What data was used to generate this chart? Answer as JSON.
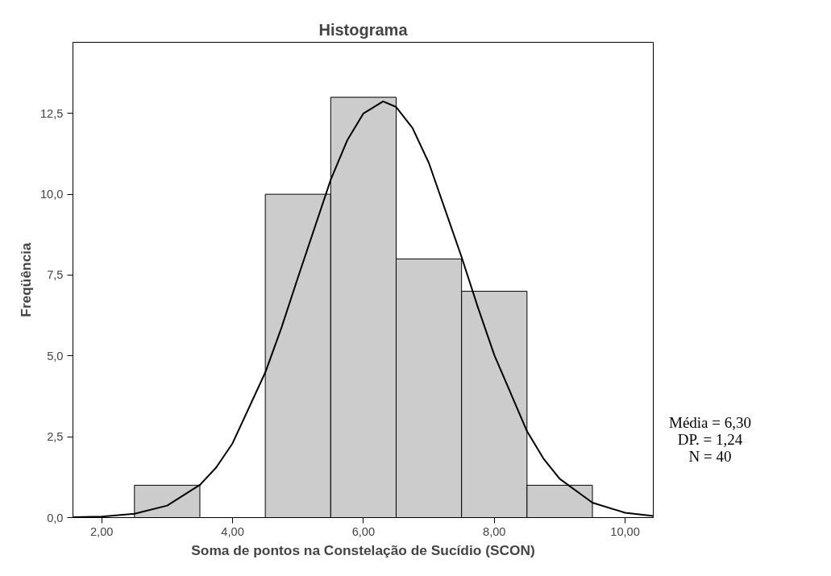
{
  "chart_data": {
    "type": "histogram",
    "title": "Histograma",
    "xlabel": "Soma de pontos na Constelação de Sucídio (SCON)",
    "ylabel": "Freqüência",
    "bins": [
      2.5,
      3.5,
      4.5,
      5.5,
      6.5,
      7.5,
      8.5,
      9.5
    ],
    "values": [
      1,
      0,
      10,
      13,
      8,
      7,
      1
    ],
    "color": "#cccccc",
    "series": [
      {
        "type": "line",
        "color": "#000000",
        "x": [
          1.56,
          2.0,
          2.5,
          3.0,
          3.5,
          3.75,
          4.0,
          4.5,
          4.75,
          5.0,
          5.5,
          5.75,
          6.0,
          6.3,
          6.5,
          6.75,
          7.0,
          7.5,
          7.75,
          8.0,
          8.5,
          8.75,
          9.0,
          9.5,
          10.0,
          10.43
        ],
        "values": [
          0.01,
          0.03,
          0.12,
          0.37,
          1.01,
          1.55,
          2.3,
          4.49,
          5.89,
          7.43,
          10.45,
          11.66,
          12.5,
          12.87,
          12.7,
          12.05,
          10.97,
          8.06,
          6.5,
          5.03,
          2.67,
          1.83,
          1.2,
          0.46,
          0.15,
          0.05
        ]
      }
    ],
    "xlim": [
      1.56,
      10.43
    ],
    "ylim": [
      0,
      14.7
    ],
    "xticks": [
      {
        "value": 2,
        "label": "2,00"
      },
      {
        "value": 4,
        "label": "4,00"
      },
      {
        "value": 6,
        "label": "6,00"
      },
      {
        "value": 8,
        "label": "8,00"
      },
      {
        "value": 10,
        "label": "10,00"
      }
    ],
    "yticks": [
      {
        "value": 0,
        "label": "0,0"
      },
      {
        "value": 2.5,
        "label": "2,5"
      },
      {
        "value": 5,
        "label": "5,0"
      },
      {
        "value": 7.5,
        "label": "7,5"
      },
      {
        "value": 10,
        "label": "10,0"
      },
      {
        "value": 12.5,
        "label": "12,5"
      }
    ],
    "grid": false,
    "annotations": [
      "Média = 6,30",
      "DP. = 1,24",
      "N = 40"
    ]
  }
}
